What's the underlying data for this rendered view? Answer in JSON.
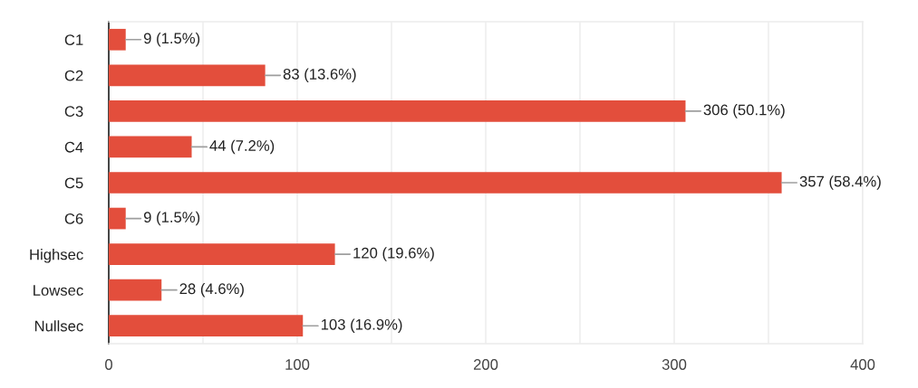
{
  "chart_data": {
    "type": "bar",
    "orientation": "horizontal",
    "categories": [
      "C1",
      "C2",
      "C3",
      "C4",
      "C5",
      "C6",
      "Highsec",
      "Lowsec",
      "Nullsec"
    ],
    "values": [
      9,
      83,
      306,
      44,
      357,
      9,
      120,
      28,
      103
    ],
    "value_labels": [
      "9 (1.5%)",
      "83 (13.6%)",
      "306 (50.1%)",
      "44 (7.2%)",
      "357 (58.4%)",
      "9 (1.5%)",
      "120 (19.6%)",
      "28 (4.6%)",
      "103 (16.9%)"
    ],
    "color": "#e34e3c",
    "xlim": [
      0,
      400
    ],
    "xticks": [
      0,
      {
        "value": 50,
        "label": null
      },
      100,
      {
        "value": 150,
        "label": null
      },
      200,
      {
        "value": 250,
        "label": null
      },
      300,
      {
        "value": 350,
        "label": null
      },
      400
    ],
    "grid": "x"
  }
}
